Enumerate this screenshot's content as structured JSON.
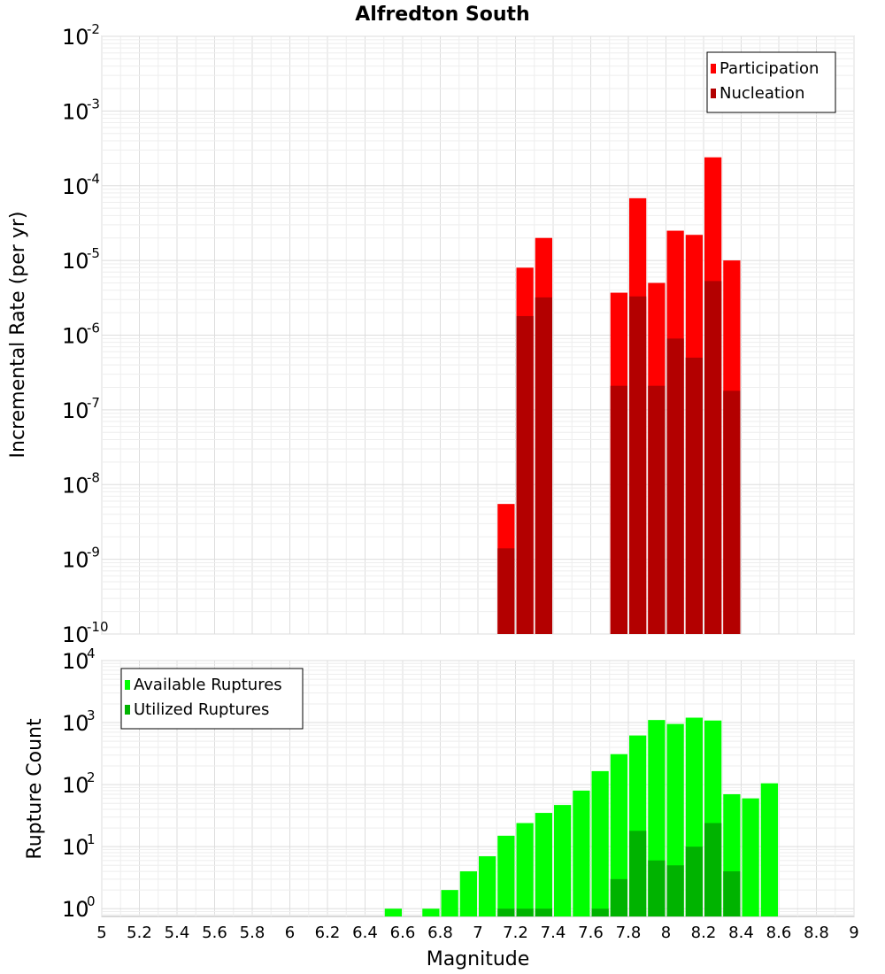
{
  "chart_data": [
    {
      "type": "bar",
      "title": "Alfredton South",
      "ylabel": "Incremental Rate (per yr)",
      "xlabel": "",
      "yscale": "log",
      "ylim": [
        1e-10,
        0.01
      ],
      "xlim": [
        5,
        9
      ],
      "ytick_exponents": [
        "-2",
        "-3",
        "-4",
        "-5",
        "-6",
        "-7",
        "-8",
        "-9",
        "-10"
      ],
      "ytick_base": "10",
      "grid": true,
      "legend_position": "top-right",
      "series": [
        {
          "name": "Participation",
          "color": "#ff0000",
          "x": [
            7.1,
            7.2,
            7.3,
            7.7,
            7.8,
            7.9,
            8.0,
            8.1,
            8.2,
            8.3
          ],
          "values": [
            5.5e-09,
            8e-06,
            2e-05,
            3.7e-06,
            6.8e-05,
            5e-06,
            2.5e-05,
            2.2e-05,
            0.00024,
            1e-05
          ]
        },
        {
          "name": "Nucleation",
          "color": "#b30000",
          "x": [
            7.1,
            7.2,
            7.3,
            7.7,
            7.8,
            7.9,
            8.0,
            8.1,
            8.2,
            8.3
          ],
          "values": [
            1.4e-09,
            1.8e-06,
            3.2e-06,
            2.1e-07,
            3.3e-06,
            2.1e-07,
            9e-07,
            5e-07,
            5.3e-06,
            1.8e-07
          ]
        }
      ]
    },
    {
      "type": "bar",
      "ylabel": "Rupture Count",
      "xlabel": "Magnitude",
      "yscale": "log",
      "ylim": [
        0.75,
        10000
      ],
      "xlim": [
        5,
        9
      ],
      "ytick_exponents": [
        "4",
        "3",
        "2",
        "1",
        "0"
      ],
      "ytick_base": "10",
      "xticks": [
        "5",
        "5.2",
        "5.4",
        "5.6",
        "5.8",
        "6",
        "6.2",
        "6.4",
        "6.6",
        "6.8",
        "7",
        "7.2",
        "7.4",
        "7.6",
        "7.8",
        "8",
        "8.2",
        "8.4",
        "8.6",
        "8.8",
        "9"
      ],
      "grid": true,
      "legend_position": "top-left",
      "series": [
        {
          "name": "Available Ruptures",
          "color": "#00ff00",
          "x": [
            6.5,
            6.7,
            6.8,
            6.9,
            7.0,
            7.1,
            7.2,
            7.3,
            7.4,
            7.5,
            7.6,
            7.7,
            7.8,
            7.9,
            8.0,
            8.1,
            8.2,
            8.3,
            8.4,
            8.5
          ],
          "values": [
            1,
            1,
            2,
            4,
            7,
            15,
            24,
            35,
            47,
            80,
            165,
            310,
            620,
            1100,
            950,
            1200,
            1080,
            70,
            60,
            105
          ]
        },
        {
          "name": "Utilized Ruptures",
          "color": "#00b300",
          "x": [
            7.1,
            7.2,
            7.3,
            7.6,
            7.7,
            7.8,
            7.9,
            8.0,
            8.1,
            8.2,
            8.3
          ],
          "values": [
            1,
            1,
            1,
            1,
            3,
            18,
            6,
            5,
            10,
            24,
            4
          ]
        }
      ]
    }
  ]
}
